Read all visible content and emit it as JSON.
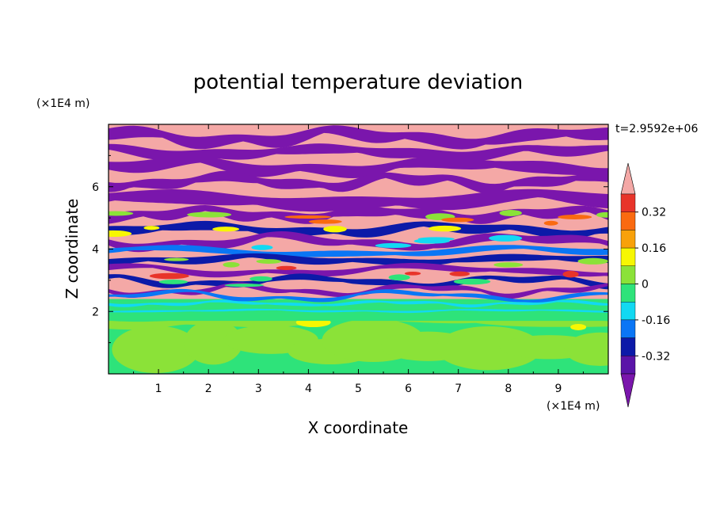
{
  "chart_data": {
    "type": "heatmap",
    "title": "potential temperature deviation",
    "xlabel": "X coordinate",
    "ylabel": "Z coordinate",
    "x_unit": "(×1E4 m)",
    "y_unit": "(×1E4 m)",
    "time_label": "t=2.9592e+06",
    "xlim": [
      0,
      10
    ],
    "ylim": [
      0,
      8
    ],
    "x_ticks": [
      1,
      2,
      3,
      4,
      5,
      6,
      7,
      8,
      9
    ],
    "y_ticks": [
      2,
      4,
      6
    ],
    "colorbar": {
      "levels": [
        -0.4,
        -0.32,
        -0.24,
        -0.16,
        -0.08,
        0,
        0.08,
        0.16,
        0.24,
        0.32,
        0.4
      ],
      "labels": [
        "0.32",
        "0.16",
        "0",
        "-0.16",
        "-0.32"
      ],
      "colors_top_to_bottom": [
        "#f4a8a6",
        "#e8342a",
        "#fa6a10",
        "#f8a10a",
        "#f7f702",
        "#8be238",
        "#2ee37a",
        "#12d9f2",
        "#0a76f5",
        "#0c1aa8",
        "#5a14a8",
        "#7a16ac"
      ],
      "extend": "both"
    },
    "field_bands": [
      {
        "zmin": 0.0,
        "zmax": 1.7,
        "dominant": "green",
        "values": [
          0.0,
          0.08
        ]
      },
      {
        "zmin": 1.7,
        "zmax": 2.4,
        "dominant": "cyan-green",
        "values": [
          -0.16,
          0.08
        ]
      },
      {
        "zmin": 2.4,
        "zmax": 7.9,
        "dominant": "alternating pink / purple layers",
        "values": [
          -0.4,
          0.4
        ]
      }
    ]
  }
}
